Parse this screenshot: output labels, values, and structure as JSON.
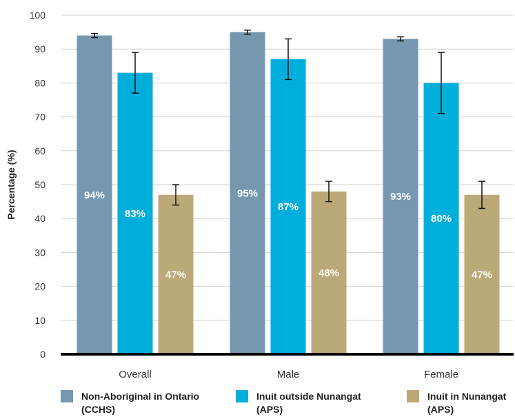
{
  "chart_data": {
    "type": "bar",
    "categories": [
      "Overall",
      "Male",
      "Female"
    ],
    "ylabel": "Percentage (%)",
    "ylim": [
      0,
      100
    ],
    "yticks": [
      0,
      10,
      20,
      30,
      40,
      50,
      60,
      70,
      80,
      90,
      100
    ],
    "grid": true,
    "legend_position": "bottom",
    "error_bars": true,
    "series": [
      {
        "name": "Non-Aboriginal in Ontario (CCHS)",
        "legend_lines": [
          "Non-Aboriginal in Ontario",
          "(CCHS)"
        ],
        "color": "#7598b0",
        "values": [
          94,
          95,
          93
        ],
        "labels": [
          "94%",
          "95%",
          "93%"
        ],
        "error_low": [
          93.4,
          94.4,
          92.4
        ],
        "error_high": [
          94.6,
          95.6,
          93.6
        ]
      },
      {
        "name": "Inuit outside Nunangat (APS)",
        "legend_lines": [
          "Inuit outside Nunangat",
          "(APS)"
        ],
        "color": "#00aedb",
        "values": [
          83,
          87,
          80
        ],
        "labels": [
          "83%",
          "87%",
          "80%"
        ],
        "error_low": [
          77,
          81,
          71
        ],
        "error_high": [
          89,
          93,
          89
        ]
      },
      {
        "name": "Inuit in Nunangat (APS)",
        "legend_lines": [
          "Inuit in Nunangat",
          "(APS)"
        ],
        "color": "#bba977",
        "values": [
          47,
          48,
          47
        ],
        "labels": [
          "47%",
          "48%",
          "47%"
        ],
        "error_low": [
          44,
          45,
          43
        ],
        "error_high": [
          50,
          51,
          51
        ]
      }
    ]
  }
}
